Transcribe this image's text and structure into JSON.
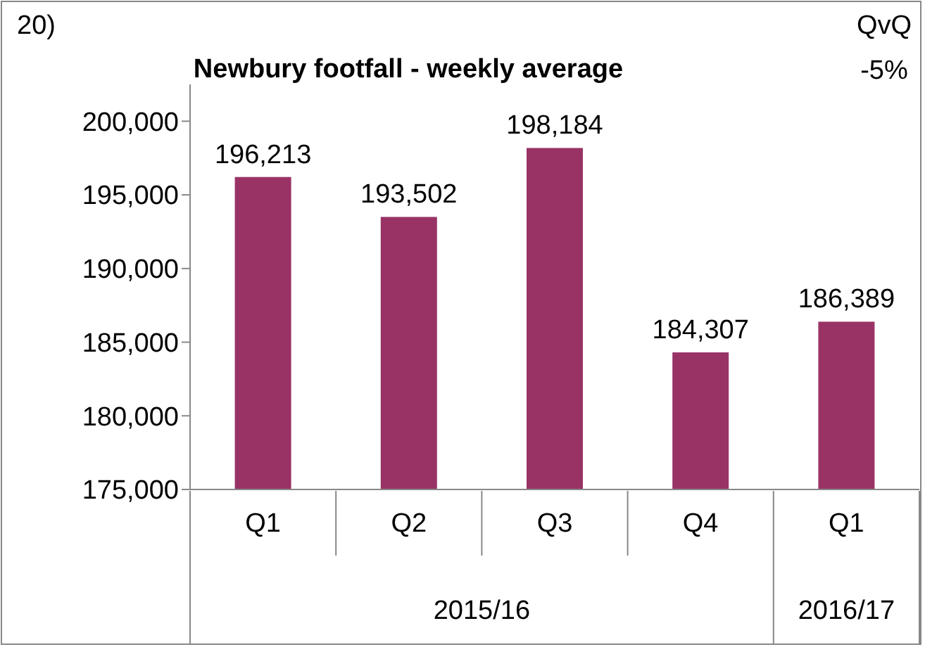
{
  "chart_data": {
    "type": "bar",
    "title": "Newbury footfall - weekly average",
    "categories": [
      "Q1",
      "Q2",
      "Q3",
      "Q4",
      "Q1"
    ],
    "values": [
      196213,
      193502,
      198184,
      184307,
      186389
    ],
    "color": "#993366",
    "ylim": [
      175000,
      202500
    ],
    "yticks": [
      {
        "value": 175000,
        "label": "175,000"
      },
      {
        "value": 180000,
        "label": "180,000"
      },
      {
        "value": 185000,
        "label": "185,000"
      },
      {
        "value": 190000,
        "label": "190,000"
      },
      {
        "value": 195000,
        "label": "195,000"
      },
      {
        "value": 200000,
        "label": "200,000"
      }
    ],
    "value_labels": [
      "196,213",
      "193,502",
      "198,184",
      "184,307",
      "186,389"
    ],
    "grid": false,
    "annotations": [
      "20)",
      "QvQ",
      "-5%",
      "2015/16",
      "2016/17"
    ]
  }
}
